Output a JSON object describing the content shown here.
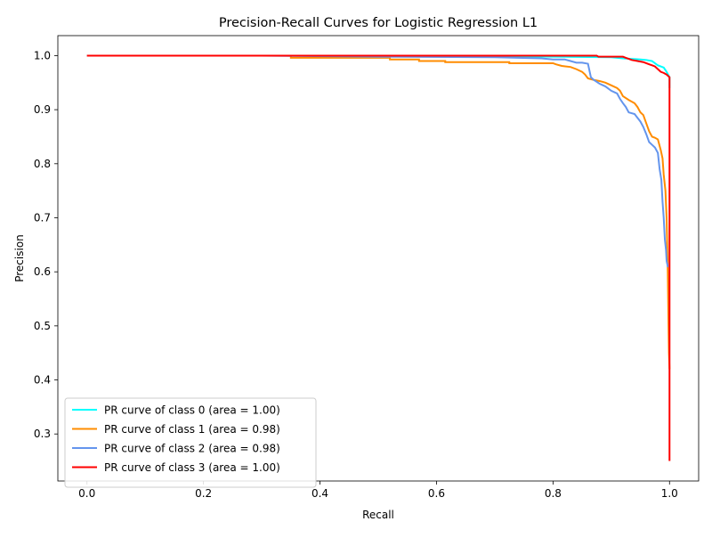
{
  "chart_data": {
    "type": "line",
    "title": "Precision-Recall Curves for Logistic Regression L1",
    "xlabel": "Recall",
    "ylabel": "Precision",
    "xlim": [
      -0.05,
      1.05
    ],
    "ylim": [
      0.213,
      1.037
    ],
    "xticks": [
      0.0,
      0.2,
      0.4,
      0.6,
      0.8,
      1.0
    ],
    "xtick_labels": [
      "0.0",
      "0.2",
      "0.4",
      "0.6",
      "0.8",
      "1.0"
    ],
    "yticks": [
      0.3,
      0.4,
      0.5,
      0.6,
      0.7,
      0.8,
      0.9,
      1.0
    ],
    "ytick_labels": [
      "0.3",
      "0.4",
      "0.5",
      "0.6",
      "0.7",
      "0.8",
      "0.9",
      "1.0"
    ],
    "grid": false,
    "legend_position": "lower-left",
    "series": [
      {
        "name": "PR curve of class 0 (area = 1.00)",
        "color": "#00ffff",
        "x": [
          0.0,
          0.5,
          0.8,
          0.9,
          0.92,
          0.95,
          0.96,
          0.97,
          0.98,
          0.99,
          0.995,
          1.0,
          1.0
        ],
        "y": [
          1.0,
          1.0,
          0.998,
          0.997,
          0.995,
          0.993,
          0.992,
          0.99,
          0.982,
          0.978,
          0.97,
          0.96,
          0.94
        ]
      },
      {
        "name": "PR curve of class 1 (area = 0.98)",
        "color": "#ff8c00",
        "x": [
          0.0,
          0.35,
          0.35,
          0.52,
          0.52,
          0.57,
          0.57,
          0.615,
          0.615,
          0.725,
          0.725,
          0.8,
          0.805,
          0.815,
          0.83,
          0.84,
          0.85,
          0.855,
          0.86,
          0.87,
          0.88,
          0.89,
          0.9,
          0.91,
          0.915,
          0.92,
          0.93,
          0.94,
          0.945,
          0.95,
          0.955,
          0.96,
          0.965,
          0.97,
          0.975,
          0.98,
          0.985,
          0.988,
          0.99,
          0.993,
          0.995,
          0.997,
          0.998,
          0.999,
          1.0
        ],
        "y": [
          1.0,
          1.0,
          0.996,
          0.996,
          0.993,
          0.993,
          0.99,
          0.99,
          0.988,
          0.988,
          0.986,
          0.986,
          0.984,
          0.981,
          0.979,
          0.975,
          0.97,
          0.965,
          0.958,
          0.955,
          0.953,
          0.95,
          0.945,
          0.94,
          0.935,
          0.925,
          0.918,
          0.912,
          0.905,
          0.895,
          0.89,
          0.875,
          0.86,
          0.85,
          0.848,
          0.845,
          0.825,
          0.81,
          0.78,
          0.75,
          0.7,
          0.6,
          0.52,
          0.45,
          0.42
        ]
      },
      {
        "name": "PR curve of class 2 (area = 0.98)",
        "color": "#6495ed",
        "x": [
          0.0,
          0.3,
          0.5,
          0.7,
          0.78,
          0.8,
          0.82,
          0.83,
          0.84,
          0.85,
          0.86,
          0.865,
          0.87,
          0.88,
          0.89,
          0.9,
          0.91,
          0.915,
          0.92,
          0.925,
          0.93,
          0.94,
          0.945,
          0.95,
          0.955,
          0.96,
          0.965,
          0.97,
          0.975,
          0.98,
          0.983,
          0.986,
          0.988,
          0.99,
          0.992,
          0.994,
          0.995,
          0.997,
          0.998
        ],
        "y": [
          1.0,
          1.0,
          0.998,
          0.997,
          0.995,
          0.993,
          0.993,
          0.99,
          0.987,
          0.987,
          0.985,
          0.96,
          0.955,
          0.948,
          0.943,
          0.935,
          0.93,
          0.92,
          0.912,
          0.905,
          0.895,
          0.892,
          0.885,
          0.878,
          0.868,
          0.855,
          0.84,
          0.835,
          0.83,
          0.82,
          0.79,
          0.77,
          0.73,
          0.7,
          0.66,
          0.64,
          0.62,
          0.61,
          0.61
        ]
      },
      {
        "name": "PR curve of class 3 (area = 1.00)",
        "color": "#ff0000",
        "x": [
          0.0,
          0.5,
          0.875,
          0.878,
          0.92,
          0.925,
          0.93,
          0.935,
          0.945,
          0.955,
          0.96,
          0.965,
          0.97,
          0.975,
          0.98,
          0.985,
          0.99,
          0.995,
          1.0,
          1.0,
          1.0
        ],
        "y": [
          1.0,
          1.0,
          1.0,
          0.998,
          0.998,
          0.996,
          0.994,
          0.992,
          0.99,
          0.988,
          0.986,
          0.984,
          0.982,
          0.98,
          0.975,
          0.97,
          0.968,
          0.965,
          0.96,
          0.5,
          0.25
        ]
      }
    ]
  }
}
